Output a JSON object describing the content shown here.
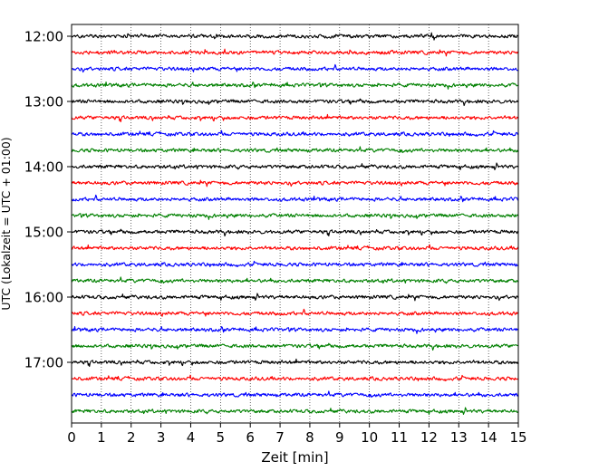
{
  "chart_data": {
    "type": "line",
    "title": "",
    "xlabel": "Zeit  [min]",
    "ylabel": "UTC (Lokalzeit = UTC + 01:00)",
    "xlim": [
      0,
      15
    ],
    "x_ticks": [
      "0",
      "1",
      "2",
      "3",
      "4",
      "5",
      "6",
      "7",
      "8",
      "9",
      "10",
      "11",
      "12",
      "13",
      "14",
      "15"
    ],
    "y_ticks": [
      "12:00",
      "13:00",
      "14:00",
      "15:00",
      "16:00",
      "17:00"
    ],
    "grid": "vertical dotted",
    "trace_interval_min": 15,
    "trace_start": "12:00",
    "trace_colors": [
      "#000000",
      "#ff0000",
      "#0000ff",
      "#008000"
    ],
    "traces": [
      {
        "start": "12:00",
        "color": "#000000"
      },
      {
        "start": "12:15",
        "color": "#ff0000"
      },
      {
        "start": "12:30",
        "color": "#0000ff"
      },
      {
        "start": "12:45",
        "color": "#008000"
      },
      {
        "start": "13:00",
        "color": "#000000"
      },
      {
        "start": "13:15",
        "color": "#ff0000"
      },
      {
        "start": "13:30",
        "color": "#0000ff"
      },
      {
        "start": "13:45",
        "color": "#008000"
      },
      {
        "start": "14:00",
        "color": "#000000"
      },
      {
        "start": "14:15",
        "color": "#ff0000"
      },
      {
        "start": "14:30",
        "color": "#0000ff"
      },
      {
        "start": "14:45",
        "color": "#008000"
      },
      {
        "start": "15:00",
        "color": "#000000"
      },
      {
        "start": "15:15",
        "color": "#ff0000"
      },
      {
        "start": "15:30",
        "color": "#0000ff"
      },
      {
        "start": "15:45",
        "color": "#008000"
      },
      {
        "start": "16:00",
        "color": "#000000"
      },
      {
        "start": "16:15",
        "color": "#ff0000"
      },
      {
        "start": "16:30",
        "color": "#0000ff"
      },
      {
        "start": "16:45",
        "color": "#008000"
      },
      {
        "start": "17:00",
        "color": "#000000"
      },
      {
        "start": "17:15",
        "color": "#ff0000"
      },
      {
        "start": "17:30",
        "color": "#0000ff"
      },
      {
        "start": "17:45",
        "color": "#008000"
      }
    ]
  }
}
